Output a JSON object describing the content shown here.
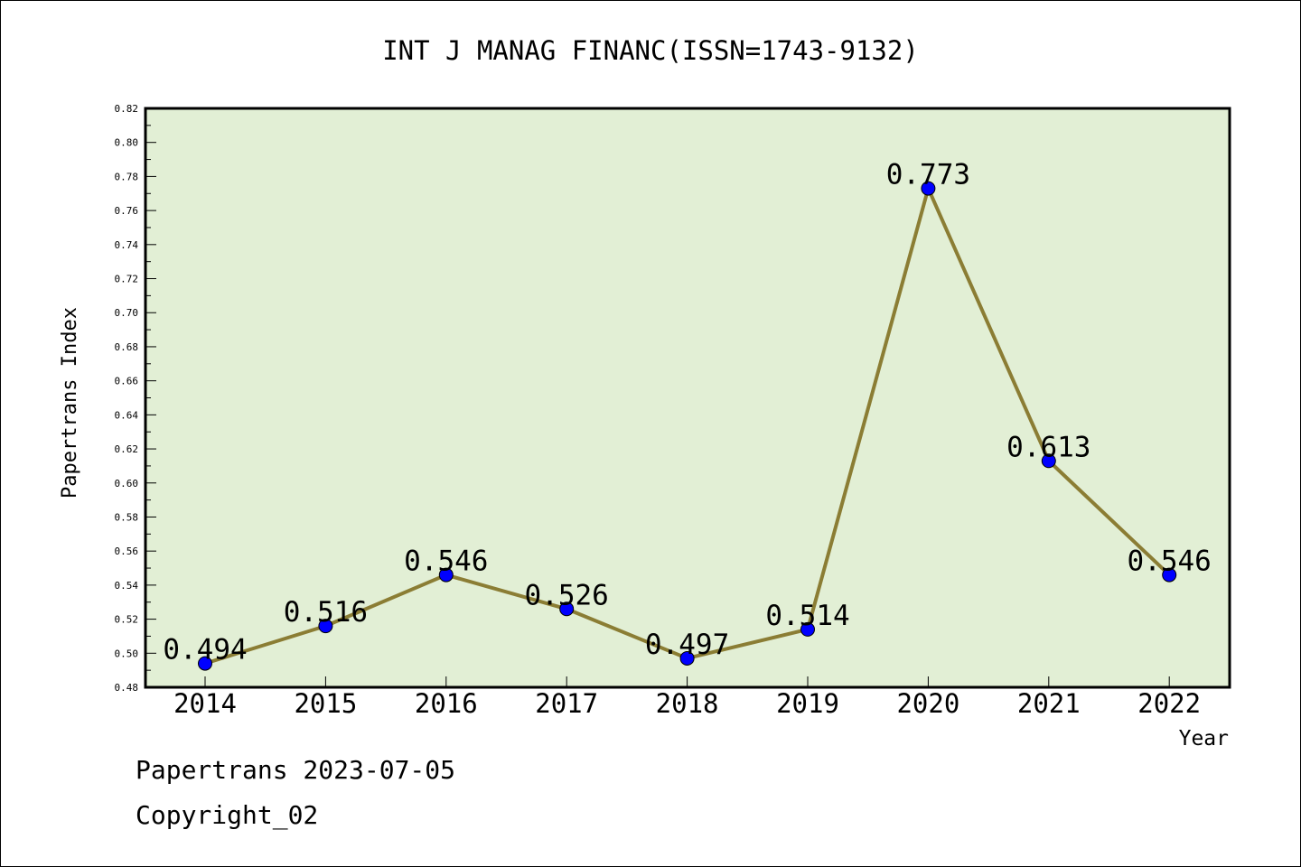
{
  "chart_data": {
    "type": "line",
    "title": "INT J MANAG FINANC(ISSN=1743-9132)",
    "xlabel": "Year",
    "ylabel": "Papertrans Index",
    "categories": [
      "2014",
      "2015",
      "2016",
      "2017",
      "2018",
      "2019",
      "2020",
      "2021",
      "2022"
    ],
    "series": [
      {
        "values": [
          0.494,
          0.516,
          0.546,
          0.526,
          0.497,
          0.514,
          0.773,
          0.613,
          0.546
        ],
        "data_labels": [
          "0.494",
          "0.516",
          "0.546",
          "0.526",
          "0.497",
          "0.514",
          "0.773",
          "0.613",
          "0.546"
        ]
      }
    ],
    "ylim": [
      0.48,
      0.82
    ],
    "ytick_labels": [
      "0.48",
      "0.50",
      "0.52",
      "0.54",
      "0.56",
      "0.58",
      "0.60",
      "0.62",
      "0.64",
      "0.66",
      "0.68",
      "0.70",
      "0.72",
      "0.74",
      "0.76",
      "0.78",
      "0.80",
      "0.82"
    ],
    "grid": false,
    "colors": {
      "plot_background": "#e2efd5",
      "line": "#8b7d34",
      "marker": "#0000ff"
    }
  },
  "footer": {
    "date_line": "Papertrans 2023-07-05",
    "copyright_line": "Copyright_02"
  }
}
